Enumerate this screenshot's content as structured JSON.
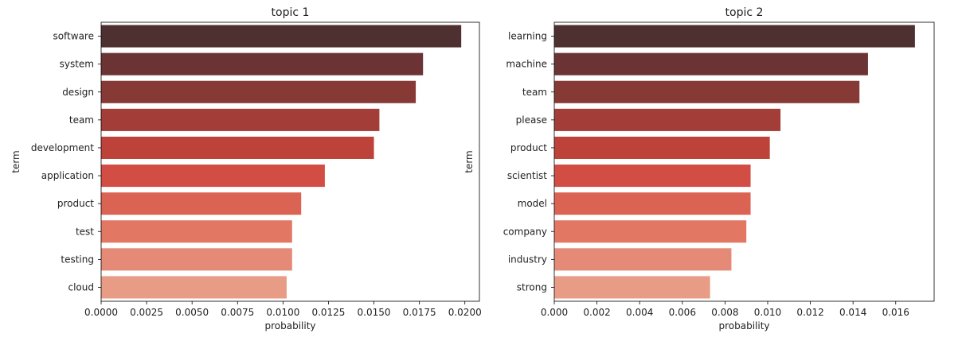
{
  "chart_data": [
    {
      "type": "bar",
      "orientation": "horizontal",
      "title": "topic 1",
      "xlabel": "probability",
      "ylabel": "term",
      "categories": [
        "software",
        "system",
        "design",
        "team",
        "development",
        "application",
        "product",
        "test",
        "testing",
        "cloud"
      ],
      "values": [
        0.0198,
        0.0177,
        0.0173,
        0.0153,
        0.015,
        0.0123,
        0.011,
        0.0105,
        0.0105,
        0.0102
      ],
      "xlim": [
        0,
        0.0208
      ],
      "xticks": [
        0,
        0.0025,
        0.005,
        0.0075,
        0.01,
        0.0125,
        0.015,
        0.0175,
        0.02
      ],
      "xtick_labels": [
        "0.0000",
        "0.0025",
        "0.0050",
        "0.0075",
        "0.0100",
        "0.0125",
        "0.0150",
        "0.0175",
        "0.0200"
      ],
      "grid": false
    },
    {
      "type": "bar",
      "orientation": "horizontal",
      "title": "topic 2",
      "xlabel": "probability",
      "ylabel": "term",
      "categories": [
        "learning",
        "machine",
        "team",
        "please",
        "product",
        "scientist",
        "model",
        "company",
        "industry",
        "strong"
      ],
      "values": [
        0.0169,
        0.0147,
        0.0143,
        0.0106,
        0.0101,
        0.0092,
        0.0092,
        0.009,
        0.0083,
        0.0073
      ],
      "xlim": [
        0,
        0.0178
      ],
      "xticks": [
        0,
        0.002,
        0.004,
        0.006,
        0.008,
        0.01,
        0.012,
        0.014,
        0.016
      ],
      "xtick_labels": [
        "0.000",
        "0.002",
        "0.004",
        "0.006",
        "0.008",
        "0.010",
        "0.012",
        "0.014",
        "0.016"
      ],
      "grid": false
    }
  ],
  "colors": {
    "bar_palette": [
      "#4f3030",
      "#6b3333",
      "#873936",
      "#a23d37",
      "#bd433a",
      "#d24e44",
      "#db6353",
      "#e27864",
      "#e58a76",
      "#e99c85"
    ],
    "axis": "#000000",
    "text": "#222222"
  }
}
